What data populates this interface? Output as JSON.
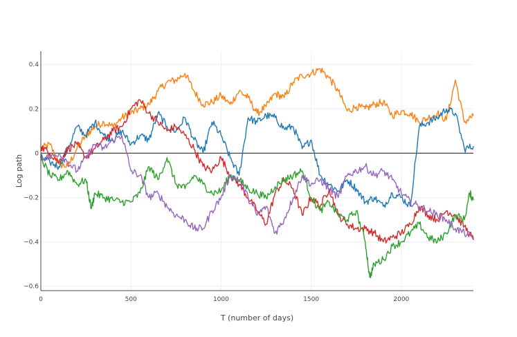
{
  "chart_data": {
    "type": "line",
    "title": "",
    "xlabel": "T (number of days)",
    "ylabel": "Log path",
    "xlim": [
      0,
      2400
    ],
    "ylim": [
      -0.62,
      0.46
    ],
    "xticks": [
      0,
      500,
      1000,
      1500,
      2000
    ],
    "xtick_labels": [
      "0",
      "500",
      "1000",
      "1500",
      "2000"
    ],
    "yticks": [
      0.4,
      0.2,
      0,
      -0.2,
      -0.4,
      -0.6
    ],
    "ytick_labels": [
      "0.4",
      "0.2",
      "0",
      "−0.2",
      "−0.4",
      "−0.6"
    ],
    "grid": true,
    "legend": "none",
    "series": [
      {
        "name": "orange",
        "color": "#ff7f0e",
        "points": [
          [
            0,
            0.02
          ],
          [
            50,
            0.04
          ],
          [
            100,
            -0.05
          ],
          [
            150,
            -0.06
          ],
          [
            200,
            0.02
          ],
          [
            250,
            0.08
          ],
          [
            300,
            0.12
          ],
          [
            350,
            0.14
          ],
          [
            400,
            0.12
          ],
          [
            450,
            0.16
          ],
          [
            500,
            0.18
          ],
          [
            550,
            0.2
          ],
          [
            600,
            0.22
          ],
          [
            650,
            0.28
          ],
          [
            700,
            0.32
          ],
          [
            750,
            0.33
          ],
          [
            800,
            0.36
          ],
          [
            850,
            0.28
          ],
          [
            900,
            0.22
          ],
          [
            950,
            0.23
          ],
          [
            1000,
            0.26
          ],
          [
            1050,
            0.22
          ],
          [
            1100,
            0.28
          ],
          [
            1150,
            0.25
          ],
          [
            1200,
            0.18
          ],
          [
            1250,
            0.21
          ],
          [
            1300,
            0.27
          ],
          [
            1350,
            0.25
          ],
          [
            1400,
            0.32
          ],
          [
            1450,
            0.35
          ],
          [
            1500,
            0.36
          ],
          [
            1550,
            0.38
          ],
          [
            1600,
            0.34
          ],
          [
            1650,
            0.28
          ],
          [
            1700,
            0.19
          ],
          [
            1750,
            0.21
          ],
          [
            1800,
            0.2
          ],
          [
            1850,
            0.22
          ],
          [
            1900,
            0.23
          ],
          [
            1950,
            0.17
          ],
          [
            2000,
            0.19
          ],
          [
            2050,
            0.18
          ],
          [
            2100,
            0.14
          ],
          [
            2150,
            0.16
          ],
          [
            2200,
            0.18
          ],
          [
            2250,
            0.15
          ],
          [
            2300,
            0.33
          ],
          [
            2350,
            0.14
          ],
          [
            2400,
            0.17
          ]
        ]
      },
      {
        "name": "blue",
        "color": "#1f77b4",
        "points": [
          [
            0,
            -0.02
          ],
          [
            50,
            -0.04
          ],
          [
            100,
            -0.06
          ],
          [
            150,
            0.02
          ],
          [
            200,
            0.12
          ],
          [
            250,
            0.08
          ],
          [
            300,
            0.14
          ],
          [
            350,
            0.08
          ],
          [
            400,
            0.06
          ],
          [
            450,
            0.1
          ],
          [
            500,
            0.04
          ],
          [
            550,
            0.08
          ],
          [
            600,
            0.06
          ],
          [
            650,
            0.18
          ],
          [
            700,
            0.12
          ],
          [
            750,
            0.1
          ],
          [
            800,
            0.16
          ],
          [
            850,
            0.06
          ],
          [
            900,
            0.0
          ],
          [
            950,
            0.14
          ],
          [
            1000,
            0.08
          ],
          [
            1050,
            -0.02
          ],
          [
            1100,
            -0.1
          ],
          [
            1150,
            0.16
          ],
          [
            1200,
            0.14
          ],
          [
            1250,
            0.17
          ],
          [
            1300,
            0.16
          ],
          [
            1350,
            0.11
          ],
          [
            1400,
            0.12
          ],
          [
            1450,
            0.02
          ],
          [
            1500,
            0.06
          ],
          [
            1550,
            -0.1
          ],
          [
            1600,
            -0.14
          ],
          [
            1650,
            -0.17
          ],
          [
            1700,
            -0.12
          ],
          [
            1750,
            -0.16
          ],
          [
            1800,
            -0.22
          ],
          [
            1850,
            -0.2
          ],
          [
            1900,
            -0.24
          ],
          [
            1950,
            -0.18
          ],
          [
            2000,
            -0.2
          ],
          [
            2050,
            -0.24
          ],
          [
            2100,
            0.12
          ],
          [
            2150,
            0.14
          ],
          [
            2200,
            0.16
          ],
          [
            2250,
            0.2
          ],
          [
            2300,
            0.18
          ],
          [
            2350,
            0.02
          ],
          [
            2400,
            0.03
          ]
        ]
      },
      {
        "name": "red",
        "color": "#d62728",
        "points": [
          [
            0,
            0.03
          ],
          [
            50,
            0.0
          ],
          [
            100,
            -0.04
          ],
          [
            150,
            0.02
          ],
          [
            200,
            0.04
          ],
          [
            250,
            -0.02
          ],
          [
            300,
            0.02
          ],
          [
            350,
            0.06
          ],
          [
            400,
            0.1
          ],
          [
            450,
            0.12
          ],
          [
            500,
            0.2
          ],
          [
            550,
            0.24
          ],
          [
            600,
            0.18
          ],
          [
            650,
            0.14
          ],
          [
            700,
            0.1
          ],
          [
            750,
            0.12
          ],
          [
            800,
            0.08
          ],
          [
            850,
            0.02
          ],
          [
            900,
            -0.06
          ],
          [
            950,
            -0.08
          ],
          [
            1000,
            -0.02
          ],
          [
            1050,
            -0.1
          ],
          [
            1100,
            -0.14
          ],
          [
            1150,
            -0.2
          ],
          [
            1200,
            -0.26
          ],
          [
            1250,
            -0.32
          ],
          [
            1300,
            -0.18
          ],
          [
            1350,
            -0.12
          ],
          [
            1400,
            -0.16
          ],
          [
            1450,
            -0.28
          ],
          [
            1500,
            -0.2
          ],
          [
            1550,
            -0.24
          ],
          [
            1600,
            -0.16
          ],
          [
            1650,
            -0.28
          ],
          [
            1700,
            -0.32
          ],
          [
            1750,
            -0.34
          ],
          [
            1800,
            -0.34
          ],
          [
            1850,
            -0.36
          ],
          [
            1900,
            -0.4
          ],
          [
            1950,
            -0.38
          ],
          [
            2000,
            -0.36
          ],
          [
            2050,
            -0.32
          ],
          [
            2100,
            -0.24
          ],
          [
            2150,
            -0.28
          ],
          [
            2200,
            -0.3
          ],
          [
            2250,
            -0.26
          ],
          [
            2300,
            -0.28
          ],
          [
            2350,
            -0.33
          ],
          [
            2400,
            -0.39
          ]
        ]
      },
      {
        "name": "green",
        "color": "#2ca02c",
        "points": [
          [
            0,
            -0.02
          ],
          [
            50,
            -0.1
          ],
          [
            100,
            -0.12
          ],
          [
            150,
            -0.08
          ],
          [
            200,
            -0.14
          ],
          [
            250,
            -0.12
          ],
          [
            280,
            -0.25
          ],
          [
            300,
            -0.18
          ],
          [
            350,
            -0.2
          ],
          [
            400,
            -0.21
          ],
          [
            450,
            -0.22
          ],
          [
            500,
            -0.22
          ],
          [
            550,
            -0.18
          ],
          [
            600,
            -0.06
          ],
          [
            650,
            -0.12
          ],
          [
            700,
            -0.02
          ],
          [
            750,
            -0.14
          ],
          [
            800,
            -0.16
          ],
          [
            850,
            -0.1
          ],
          [
            900,
            -0.14
          ],
          [
            950,
            -0.18
          ],
          [
            1000,
            -0.17
          ],
          [
            1050,
            -0.1
          ],
          [
            1100,
            -0.12
          ],
          [
            1150,
            -0.16
          ],
          [
            1200,
            -0.18
          ],
          [
            1250,
            -0.2
          ],
          [
            1300,
            -0.15
          ],
          [
            1350,
            -0.12
          ],
          [
            1400,
            -0.1
          ],
          [
            1450,
            -0.08
          ],
          [
            1500,
            -0.2
          ],
          [
            1550,
            -0.26
          ],
          [
            1600,
            -0.22
          ],
          [
            1650,
            -0.28
          ],
          [
            1700,
            -0.3
          ],
          [
            1750,
            -0.26
          ],
          [
            1800,
            -0.4
          ],
          [
            1825,
            -0.56
          ],
          [
            1850,
            -0.5
          ],
          [
            1900,
            -0.48
          ],
          [
            1950,
            -0.42
          ],
          [
            2000,
            -0.4
          ],
          [
            2050,
            -0.36
          ],
          [
            2100,
            -0.32
          ],
          [
            2150,
            -0.38
          ],
          [
            2200,
            -0.4
          ],
          [
            2250,
            -0.36
          ],
          [
            2300,
            -0.28
          ],
          [
            2350,
            -0.3
          ],
          [
            2380,
            -0.18
          ],
          [
            2400,
            -0.21
          ]
        ]
      },
      {
        "name": "purple",
        "color": "#9467bd",
        "points": [
          [
            0,
            -0.02
          ],
          [
            50,
            -0.02
          ],
          [
            100,
            0.0
          ],
          [
            150,
            -0.04
          ],
          [
            200,
            -0.08
          ],
          [
            250,
            -0.02
          ],
          [
            300,
            0.04
          ],
          [
            350,
            0.02
          ],
          [
            400,
            0.06
          ],
          [
            450,
            0.08
          ],
          [
            500,
            -0.08
          ],
          [
            550,
            -0.1
          ],
          [
            600,
            -0.2
          ],
          [
            650,
            -0.18
          ],
          [
            700,
            -0.24
          ],
          [
            750,
            -0.28
          ],
          [
            800,
            -0.3
          ],
          [
            850,
            -0.34
          ],
          [
            900,
            -0.34
          ],
          [
            950,
            -0.26
          ],
          [
            1000,
            -0.2
          ],
          [
            1050,
            -0.1
          ],
          [
            1100,
            -0.12
          ],
          [
            1150,
            -0.2
          ],
          [
            1200,
            -0.28
          ],
          [
            1250,
            -0.24
          ],
          [
            1300,
            -0.36
          ],
          [
            1350,
            -0.3
          ],
          [
            1400,
            -0.2
          ],
          [
            1450,
            -0.1
          ],
          [
            1500,
            -0.14
          ],
          [
            1550,
            -0.12
          ],
          [
            1600,
            -0.16
          ],
          [
            1650,
            -0.2
          ],
          [
            1700,
            -0.1
          ],
          [
            1750,
            -0.08
          ],
          [
            1800,
            -0.06
          ],
          [
            1850,
            -0.1
          ],
          [
            1900,
            -0.08
          ],
          [
            1950,
            -0.12
          ],
          [
            2000,
            -0.18
          ],
          [
            2050,
            -0.22
          ],
          [
            2100,
            -0.24
          ],
          [
            2150,
            -0.26
          ],
          [
            2200,
            -0.28
          ],
          [
            2250,
            -0.3
          ],
          [
            2300,
            -0.34
          ],
          [
            2350,
            -0.36
          ],
          [
            2400,
            -0.38
          ]
        ]
      }
    ]
  }
}
